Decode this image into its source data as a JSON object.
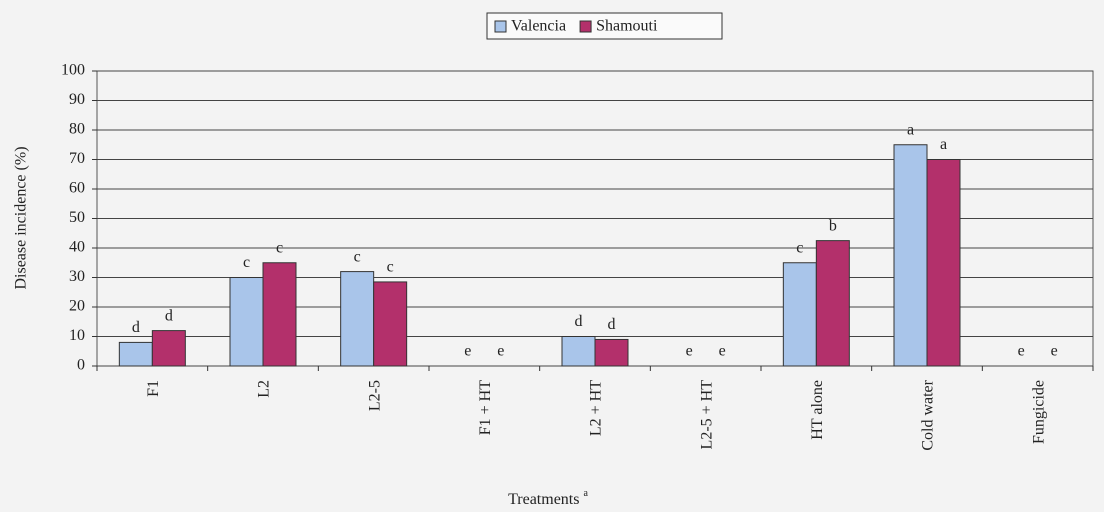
{
  "chart_data": {
    "type": "bar",
    "categories": [
      "F1",
      "L2",
      "L2-5",
      "F1 + HT",
      "L2 + HT",
      "L2-5 + HT",
      "HT alone",
      "Cold water",
      "Fungicide"
    ],
    "series": [
      {
        "name": "Valencia",
        "color": "#a9c5ea",
        "values": [
          8,
          30,
          32,
          0,
          10,
          0,
          35,
          75,
          0
        ],
        "annotations": [
          "d",
          "c",
          "c",
          "e",
          "d",
          "e",
          "c",
          "a",
          "e"
        ]
      },
      {
        "name": "Shamouti",
        "color": "#b3306b",
        "values": [
          12,
          35,
          28.5,
          0,
          9,
          0,
          42.5,
          70,
          0
        ],
        "annotations": [
          "d",
          "c",
          "c",
          "e",
          "d",
          "e",
          "b",
          "a",
          "e"
        ]
      }
    ],
    "ylabel": "Disease incidence (%)",
    "xlabel": "Treatments",
    "xlabel_note": "a",
    "ylim": [
      0,
      100
    ],
    "yticks": [
      0,
      10,
      20,
      30,
      40,
      50,
      60,
      70,
      80,
      90,
      100
    ],
    "grid": true,
    "legend": "top"
  }
}
